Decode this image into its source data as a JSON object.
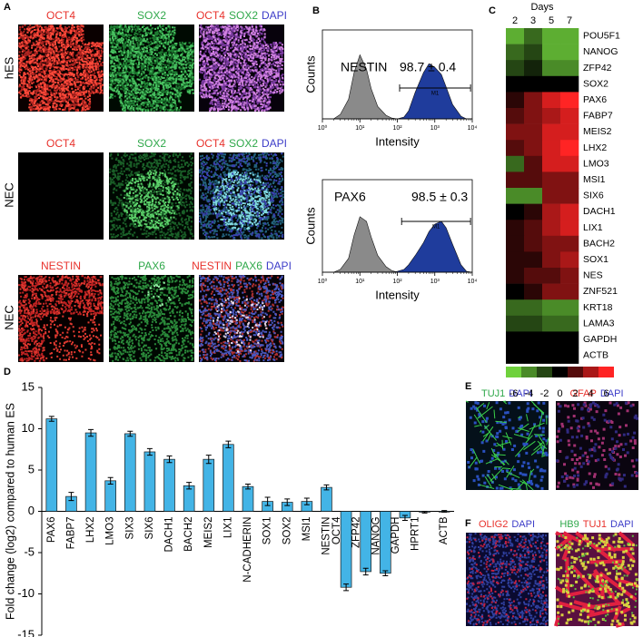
{
  "figure": {
    "panel_labels": [
      "A",
      "B",
      "C",
      "D",
      "E",
      "F"
    ],
    "panel_a": {
      "row_labels": [
        "hES",
        "NEC",
        "NEC"
      ],
      "image_labels": [
        [
          [
            {
              "text": "OCT4",
              "color": "#e8322c"
            }
          ],
          [
            {
              "text": "SOX2",
              "color": "#2fa84a"
            }
          ],
          [
            {
              "text": "OCT4",
              "color": "#e8322c"
            },
            {
              "text": "SOX2",
              "color": "#2fa84a"
            },
            {
              "text": "DAPI",
              "color": "#3c3cc8"
            }
          ]
        ],
        [
          [
            {
              "text": "OCT4",
              "color": "#e8322c"
            }
          ],
          [
            {
              "text": "SOX2",
              "color": "#2fa84a"
            }
          ],
          [
            {
              "text": "OCT4",
              "color": "#e8322c"
            },
            {
              "text": "SOX2",
              "color": "#2fa84a"
            },
            {
              "text": "DAPI",
              "color": "#3c3cc8"
            }
          ]
        ],
        [
          [
            {
              "text": "NESTIN",
              "color": "#e8322c"
            }
          ],
          [
            {
              "text": "PAX6",
              "color": "#2fa84a"
            }
          ],
          [
            {
              "text": "NESTIN",
              "color": "#e8322c"
            },
            {
              "text": "PAX6",
              "color": "#2fa84a"
            },
            {
              "text": "DAPI",
              "color": "#3c3cc8"
            }
          ]
        ]
      ]
    },
    "panel_e": {
      "image_labels": [
        [
          {
            "text": "TUJ1",
            "color": "#2fa84a"
          },
          {
            "text": "DAPI",
            "color": "#3c3cc8"
          }
        ],
        [
          {
            "text": "GFAP",
            "color": "#e8322c"
          },
          {
            "text": "DAPI",
            "color": "#3c3cc8"
          }
        ]
      ]
    },
    "panel_f": {
      "image_labels": [
        [
          {
            "text": "OLIG2",
            "color": "#e8322c"
          },
          {
            "text": "DAPI",
            "color": "#3c3cc8"
          }
        ],
        [
          {
            "text": "HB9",
            "color": "#2fa84a"
          },
          {
            "text": "TUJ1",
            "color": "#e8322c"
          },
          {
            "text": "DAPI",
            "color": "#3c3cc8"
          }
        ]
      ]
    }
  },
  "chart_data": [
    {
      "type": "area",
      "xlabel": "Intensity",
      "ylabel": "Counts",
      "log_x": true,
      "xlim": [
        1,
        10000
      ],
      "ylim": [
        0,
        100
      ],
      "xticks": [
        {
          "value": 1,
          "label": "10⁰"
        },
        {
          "value": 10,
          "label": "10¹"
        },
        {
          "value": 100,
          "label": "10²"
        },
        {
          "value": 1000,
          "label": "10³"
        },
        {
          "value": 10000,
          "label": "10⁴"
        }
      ],
      "x": [
        1,
        2,
        3,
        5,
        7,
        10,
        15,
        20,
        30,
        50,
        70,
        100,
        150,
        200,
        300,
        500,
        700,
        1000,
        1500,
        2000,
        3000,
        5000,
        7000,
        10000
      ],
      "series": [
        {
          "color": "#8a8a8a",
          "values": [
            0,
            0,
            5,
            22,
            52,
            72,
            56,
            34,
            14,
            4,
            1,
            0,
            0,
            0,
            0,
            0,
            0,
            0,
            0,
            0,
            0,
            0,
            0,
            0
          ]
        },
        {
          "color": "#1f3c9c",
          "values": [
            0,
            0,
            0,
            0,
            0,
            0,
            0,
            0,
            0,
            0,
            0,
            0,
            2,
            9,
            30,
            52,
            62,
            58,
            50,
            36,
            16,
            3,
            0,
            0
          ]
        }
      ],
      "annotations": {
        "label": "NESTIN",
        "stat": "98.7 ± 0.4",
        "gate": {
          "label": "M1",
          "range": [
            115,
            9000
          ]
        }
      }
    },
    {
      "type": "area",
      "xlabel": "Intensity",
      "ylabel": "Counts",
      "log_x": true,
      "xlim": [
        1,
        10000
      ],
      "ylim": [
        0,
        100
      ],
      "xticks": [
        {
          "value": 1,
          "label": "10⁰"
        },
        {
          "value": 10,
          "label": "10¹"
        },
        {
          "value": 100,
          "label": "10²"
        },
        {
          "value": 1000,
          "label": "10³"
        },
        {
          "value": 10000,
          "label": "10⁴"
        }
      ],
      "x": [
        1,
        2,
        3,
        5,
        7,
        10,
        15,
        20,
        30,
        50,
        70,
        100,
        150,
        200,
        300,
        500,
        700,
        1000,
        1500,
        2000,
        3000,
        5000,
        7000,
        10000
      ],
      "series": [
        {
          "color": "#8a8a8a",
          "values": [
            0,
            0,
            3,
            15,
            40,
            60,
            55,
            38,
            18,
            6,
            2,
            0,
            0,
            0,
            0,
            0,
            0,
            0,
            0,
            0,
            0,
            0,
            0,
            0
          ]
        },
        {
          "color": "#1f3c9c",
          "values": [
            0,
            0,
            0,
            0,
            0,
            0,
            0,
            0,
            0,
            0,
            0,
            1,
            3,
            8,
            18,
            32,
            44,
            52,
            55,
            48,
            30,
            8,
            1,
            0
          ]
        }
      ],
      "annotations": {
        "label": "PAX6",
        "stat": "98.5 ± 0.3",
        "gate": {
          "label": "M1",
          "range": [
            130,
            9000
          ]
        }
      }
    },
    {
      "type": "heatmap",
      "columns_title": "Days",
      "columns": [
        "2",
        "3",
        "5",
        "7"
      ],
      "rows": [
        "POU5F1",
        "NANOG",
        "ZFP42",
        "SOX2",
        "PAX6",
        "FABP7",
        "MEIS2",
        "LHX2",
        "LMO3",
        "MSI1",
        "SIX6",
        "DACH1",
        "LIX1",
        "BACH2",
        "SOX1",
        "NES",
        "ZNF521",
        "KRT18",
        "LAMA3",
        "GAPDH",
        "ACTB"
      ],
      "values": [
        [
          -5,
          -3,
          -5,
          -5
        ],
        [
          -3,
          -2,
          -5,
          -5
        ],
        [
          -2,
          -1,
          -4,
          -4
        ],
        [
          0,
          0,
          0,
          0
        ],
        [
          1,
          3,
          5,
          6
        ],
        [
          2,
          3,
          4,
          5
        ],
        [
          3,
          3,
          5,
          5
        ],
        [
          2,
          3,
          5,
          6
        ],
        [
          -3,
          2,
          5,
          5
        ],
        [
          2,
          2,
          3,
          3
        ],
        [
          -4,
          -4,
          3,
          3
        ],
        [
          0,
          1,
          4,
          5
        ],
        [
          1,
          2,
          4,
          5
        ],
        [
          1,
          2,
          3,
          3
        ],
        [
          1,
          1,
          3,
          4
        ],
        [
          1,
          2,
          2,
          3
        ],
        [
          0,
          1,
          3,
          3
        ],
        [
          -3,
          -3,
          -4,
          -4
        ],
        [
          -2,
          -2,
          -3,
          -3
        ],
        [
          0,
          0,
          0,
          0
        ],
        [
          0,
          0,
          0,
          0
        ]
      ],
      "colorbar": {
        "lim": [
          -6,
          6
        ],
        "ticks": [
          -6,
          -4,
          -2,
          0,
          2,
          4,
          6
        ]
      },
      "colormap": {
        "low": "#6fd13c",
        "mid": "#000000",
        "high": "#ff2424"
      }
    },
    {
      "type": "bar",
      "ylabel": "Fold change (log2) compared to human ES",
      "color": "#43b4e6",
      "categories": [
        "PAX6",
        "FABP7",
        "LHX2",
        "LMO3",
        "SIX3",
        "SIX6",
        "DACH1",
        "BACH2",
        "MEIS2",
        "LIX1",
        "N-CADHERIN",
        "SOX1",
        "SOX2",
        "MSI1",
        "NESTIN",
        "OCT4",
        "ZFP42",
        "NANOG",
        "GAPDH",
        "HPRT1",
        "ACTB"
      ],
      "values": [
        11.2,
        1.8,
        9.5,
        3.7,
        9.4,
        7.2,
        6.3,
        3.1,
        6.3,
        8.1,
        3.0,
        1.2,
        1.1,
        1.2,
        2.9,
        -9.2,
        -7.3,
        -7.5,
        -0.8,
        -0.1,
        0
      ],
      "errors": [
        0.3,
        0.5,
        0.4,
        0.4,
        0.3,
        0.4,
        0.4,
        0.4,
        0.5,
        0.4,
        0.3,
        0.5,
        0.4,
        0.4,
        0.3,
        0.4,
        0.4,
        0.3,
        0.3,
        0.1,
        0.1
      ],
      "ylim": [
        -15,
        15
      ],
      "yticks": [
        -15,
        -10,
        -5,
        0,
        5,
        10,
        15
      ]
    }
  ]
}
